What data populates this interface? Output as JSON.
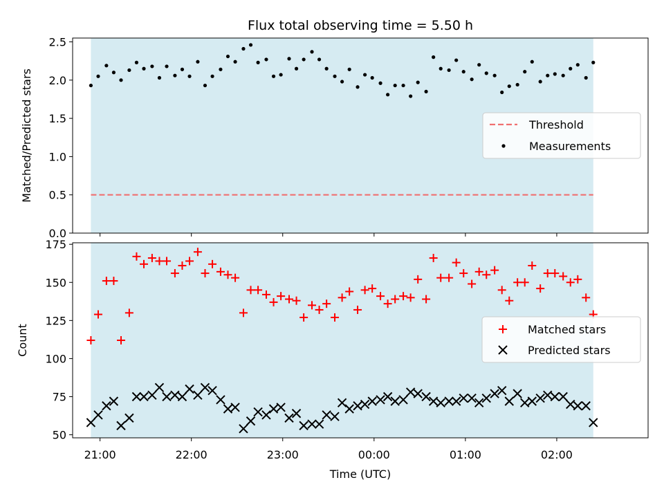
{
  "chart_data": [
    {
      "type": "scatter",
      "title": "Flux total observing time = 5.50 h",
      "ylabel": "Matched/Predicted stars",
      "xlabel": "",
      "ylim": [
        0,
        2.55
      ],
      "yticks": [
        "0.0",
        "0.5",
        "1.0",
        "1.5",
        "2.0",
        "2.5"
      ],
      "ytick_values": [
        0,
        0.5,
        1.0,
        1.5,
        2.0,
        2.5
      ],
      "shaded_span": {
        "color": "#add8e6",
        "start_h": 20.9,
        "end_h": 26.4
      },
      "legend_position": "center-right",
      "threshold": {
        "name": "Threshold",
        "value": 0.5,
        "color": "#f07070",
        "style": "dashed"
      },
      "series": [
        {
          "name": "Measurements",
          "marker": "dot",
          "color": "#000000",
          "x": [
            20.9,
            20.98,
            21.07,
            21.15,
            21.23,
            21.32,
            21.4,
            21.48,
            21.57,
            21.65,
            21.73,
            21.82,
            21.9,
            21.98,
            22.07,
            22.15,
            22.23,
            22.32,
            22.4,
            22.48,
            22.57,
            22.65,
            22.73,
            22.82,
            22.9,
            22.98,
            23.07,
            23.15,
            23.23,
            23.32,
            23.4,
            23.48,
            23.57,
            23.65,
            23.73,
            23.82,
            23.9,
            23.98,
            24.07,
            24.15,
            24.23,
            24.32,
            24.4,
            24.48,
            24.57,
            24.65,
            24.73,
            24.82,
            24.9,
            24.98,
            25.07,
            25.15,
            25.23,
            25.32,
            25.4,
            25.48,
            25.57,
            25.65,
            25.73,
            25.82,
            25.9,
            25.98,
            26.07,
            26.15,
            26.23,
            26.32,
            26.4
          ],
          "values": [
            1.93,
            2.05,
            2.19,
            2.1,
            2.0,
            2.13,
            2.23,
            2.15,
            2.18,
            2.03,
            2.18,
            2.06,
            2.14,
            2.05,
            2.24,
            1.93,
            2.05,
            2.14,
            2.31,
            2.24,
            2.41,
            2.46,
            2.23,
            2.27,
            2.05,
            2.07,
            2.28,
            2.15,
            2.27,
            2.37,
            2.27,
            2.15,
            2.05,
            1.98,
            2.14,
            1.91,
            2.07,
            2.03,
            1.96,
            1.81,
            1.93,
            1.93,
            1.79,
            1.97,
            1.85,
            2.3,
            2.15,
            2.13,
            2.26,
            2.11,
            2.01,
            2.2,
            2.09,
            2.06,
            1.84,
            1.92,
            1.94,
            2.11,
            2.24,
            1.98,
            2.06,
            2.08,
            2.06,
            2.15,
            2.2,
            2.03,
            2.23
          ]
        }
      ]
    },
    {
      "type": "scatter",
      "title": "",
      "ylabel": "Count",
      "xlabel": "Time (UTC)",
      "ylim": [
        48,
        176
      ],
      "yticks": [
        "50",
        "75",
        "100",
        "125",
        "150",
        "175"
      ],
      "ytick_values": [
        50,
        75,
        100,
        125,
        150,
        175
      ],
      "xticks": [
        "21:00",
        "22:00",
        "23:00",
        "00:00",
        "01:00",
        "02:00"
      ],
      "xtick_values": [
        21,
        22,
        23,
        24,
        25,
        26
      ],
      "xlim_h": [
        20.7,
        27.0
      ],
      "shaded_span": {
        "color": "#add8e6",
        "start_h": 20.9,
        "end_h": 26.4
      },
      "legend_position": "center-right",
      "series": [
        {
          "name": "Matched stars",
          "marker": "plus",
          "color": "#ff0000",
          "x": [
            20.9,
            20.98,
            21.07,
            21.15,
            21.23,
            21.32,
            21.4,
            21.48,
            21.57,
            21.65,
            21.73,
            21.82,
            21.9,
            21.98,
            22.07,
            22.15,
            22.23,
            22.32,
            22.4,
            22.48,
            22.57,
            22.65,
            22.73,
            22.82,
            22.9,
            22.98,
            23.07,
            23.15,
            23.23,
            23.32,
            23.4,
            23.48,
            23.57,
            23.65,
            23.73,
            23.82,
            23.9,
            23.98,
            24.07,
            24.15,
            24.23,
            24.32,
            24.4,
            24.48,
            24.57,
            24.65,
            24.73,
            24.82,
            24.9,
            24.98,
            25.07,
            25.15,
            25.23,
            25.32,
            25.4,
            25.48,
            25.57,
            25.65,
            25.73,
            25.82,
            25.9,
            25.98,
            26.07,
            26.15,
            26.23,
            26.32,
            26.4
          ],
          "values": [
            112,
            129,
            151,
            151,
            112,
            130,
            167,
            162,
            166,
            164,
            164,
            156,
            161,
            164,
            170,
            156,
            162,
            157,
            155,
            153,
            130,
            145,
            145,
            142,
            137,
            141,
            139,
            138,
            127,
            135,
            132,
            136,
            127,
            140,
            144,
            132,
            145,
            146,
            141,
            136,
            139,
            141,
            140,
            152,
            139,
            166,
            153,
            153,
            163,
            156,
            149,
            157,
            155,
            158,
            145,
            138,
            150,
            150,
            161,
            146,
            156,
            156,
            154,
            150,
            152,
            140,
            129
          ]
        },
        {
          "name": "Predicted stars",
          "marker": "x",
          "color": "#000000",
          "x": [
            20.9,
            20.98,
            21.07,
            21.15,
            21.23,
            21.32,
            21.4,
            21.48,
            21.57,
            21.65,
            21.73,
            21.82,
            21.9,
            21.98,
            22.07,
            22.15,
            22.23,
            22.32,
            22.4,
            22.48,
            22.57,
            22.65,
            22.73,
            22.82,
            22.9,
            22.98,
            23.07,
            23.15,
            23.23,
            23.32,
            23.4,
            23.48,
            23.57,
            23.65,
            23.73,
            23.82,
            23.9,
            23.98,
            24.07,
            24.15,
            24.23,
            24.32,
            24.4,
            24.48,
            24.57,
            24.65,
            24.73,
            24.82,
            24.9,
            24.98,
            25.07,
            25.15,
            25.23,
            25.32,
            25.4,
            25.48,
            25.57,
            25.65,
            25.73,
            25.82,
            25.9,
            25.98,
            26.07,
            26.15,
            26.23,
            26.32,
            26.4
          ],
          "values": [
            58,
            63,
            69,
            72,
            56,
            61,
            75,
            75,
            76,
            81,
            75,
            76,
            75,
            80,
            76,
            81,
            79,
            73,
            67,
            68,
            54,
            59,
            65,
            63,
            67,
            68,
            61,
            64,
            56,
            57,
            57,
            63,
            62,
            71,
            67,
            69,
            70,
            72,
            73,
            75,
            72,
            73,
            78,
            77,
            75,
            72,
            71,
            72,
            72,
            74,
            74,
            71,
            74,
            77,
            79,
            72,
            77,
            71,
            72,
            74,
            76,
            75,
            75,
            70,
            69,
            69,
            58
          ]
        }
      ]
    }
  ]
}
